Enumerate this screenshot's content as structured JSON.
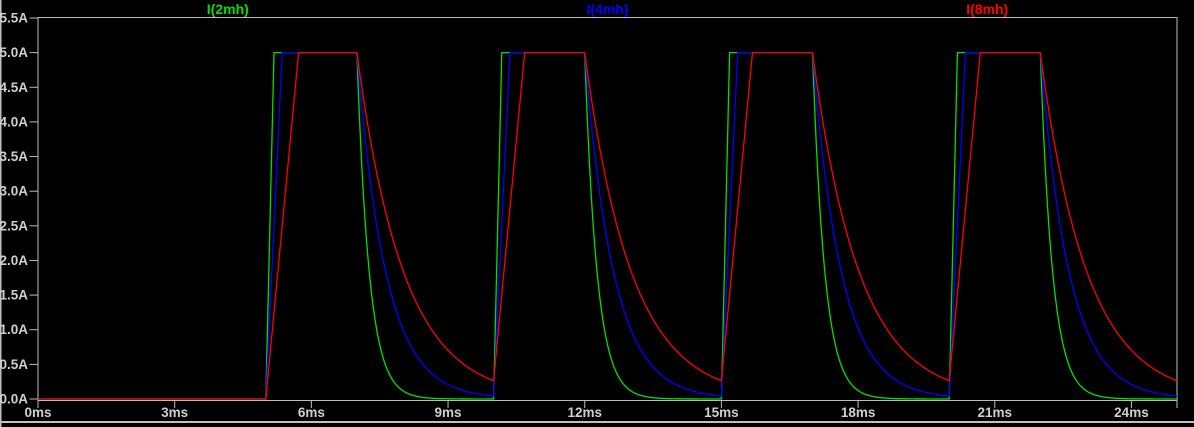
{
  "window": {
    "background": "#000000",
    "border_color": "#c0c0c0",
    "axis_color": "#bdbdbd",
    "label_color": "#cfcfcf"
  },
  "chart_data": {
    "type": "line",
    "title": "",
    "grid": false,
    "legend": {
      "position": "top",
      "labels": [
        "I(2mh)",
        "I(4mh)",
        "I(8mh)"
      ]
    },
    "x_axis": {
      "unit": "ms",
      "min_ms": 0,
      "max_ms": 25,
      "tick_step_ms": 3,
      "tick_values_ms": [
        0,
        3,
        6,
        9,
        12,
        15,
        18,
        21,
        24
      ],
      "tick_labels": [
        "0ms",
        "3ms",
        "6ms",
        "9ms",
        "12ms",
        "15ms",
        "18ms",
        "21ms",
        "24ms"
      ]
    },
    "y_axis": {
      "unit": "A",
      "min_A": 0.0,
      "max_A": 5.5,
      "tick_step_A": 0.5,
      "tick_values_A": [
        5.5,
        5.0,
        4.5,
        4.0,
        3.5,
        3.0,
        2.5,
        2.0,
        1.5,
        1.0,
        0.5,
        0.0
      ],
      "tick_labels": [
        "5.5A",
        "5.0A",
        "4.5A",
        "4.0A",
        "3.5A",
        "3.0A",
        "2.5A",
        "2.0A",
        "1.5A",
        "1.0A",
        "0.5A",
        "0.0A"
      ]
    },
    "series": [
      {
        "name": "I(2mh)",
        "color": "#00e000",
        "inductance_mH": 2,
        "rise_time_to_peak_ms": 0.18,
        "decay_tau_ms": 0.27
      },
      {
        "name": "I(4mh)",
        "color": "#0000ff",
        "inductance_mH": 4,
        "rise_time_to_peak_ms": 0.36,
        "decay_tau_ms": 0.63
      },
      {
        "name": "I(8mh)",
        "color": "#ff0000",
        "inductance_mH": 8,
        "rise_time_to_peak_ms": 0.72,
        "decay_tau_ms": 1.02
      }
    ],
    "waveform": {
      "description": "Zero current until 5ms, then 4 periodic pulses: linear rise to flat top at peak current, held until end of on-time, then exponential decay; larger inductance rises and decays slower",
      "initial_current_A": 0.0,
      "first_pulse_start_ms": 5,
      "period_ms": 5,
      "on_duration_ms": 2,
      "pulse_flat_tops_ms": [
        [
          5,
          7
        ],
        [
          10,
          12
        ],
        [
          15,
          17
        ],
        [
          20,
          22
        ]
      ],
      "peak_current_A": 5.0,
      "num_pulses": 4
    }
  }
}
